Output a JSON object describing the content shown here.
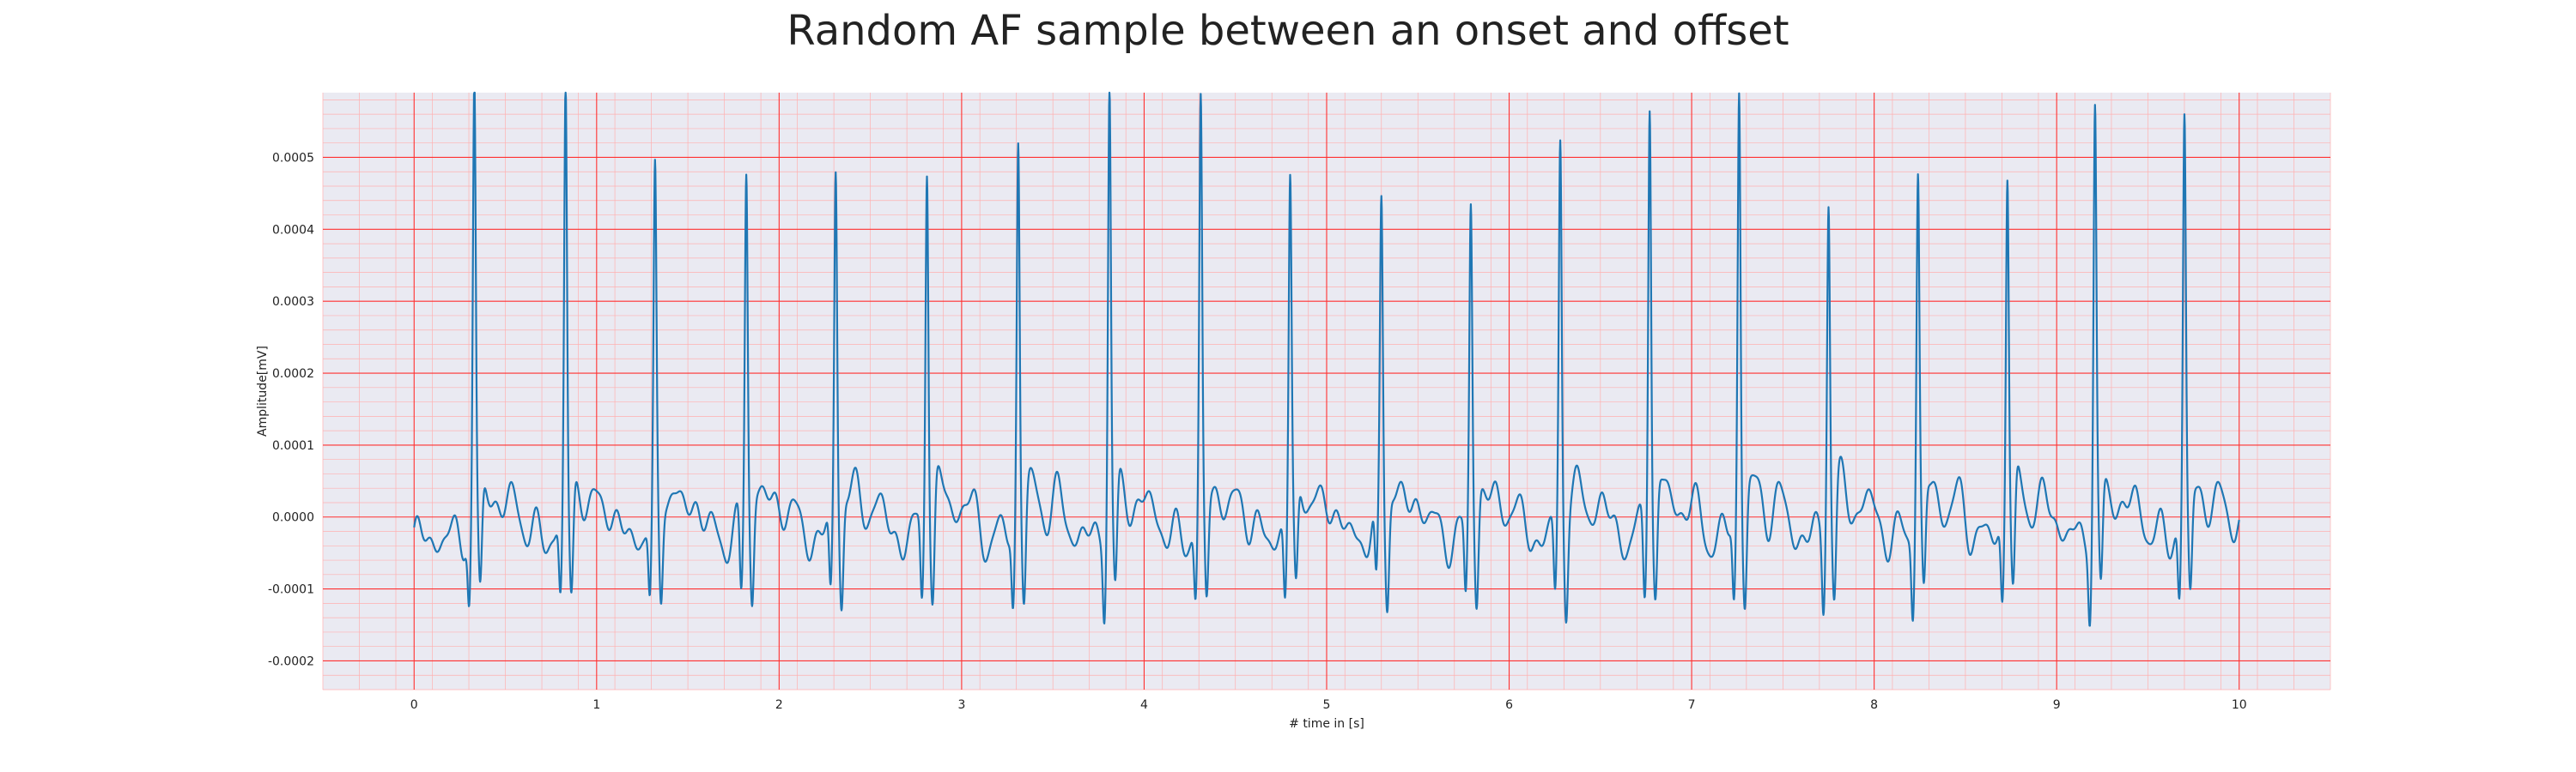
{
  "chart_data": {
    "type": "line",
    "title": "Random AF sample between an onset and offset",
    "xlabel": "# time in [s]",
    "ylabel": "Amplitude[mV]",
    "xlim": [
      -0.5,
      10.5
    ],
    "ylim": [
      -0.00024,
      0.00059
    ],
    "x_ticks": [
      0,
      1,
      2,
      3,
      4,
      5,
      6,
      7,
      8,
      9,
      10
    ],
    "y_ticks": [
      -0.0002,
      -0.0001,
      0.0,
      0.0001,
      0.0002,
      0.0003,
      0.0004,
      0.0005
    ],
    "y_tick_labels": [
      "-0.0002",
      "-0.0001",
      "0.0000",
      "0.0001",
      "0.0002",
      "0.0003",
      "0.0004",
      "0.0005"
    ],
    "grid": true,
    "minor_grid": true,
    "colors": {
      "background": "#eaeaf2",
      "major_grid": "#ff3030",
      "minor_grid": "#ffb0b0",
      "line": "#1f77b4"
    },
    "r_peaks": [
      {
        "t": 0.33,
        "amp": 0.000547
      },
      {
        "t": 0.83,
        "amp": 0.000546
      },
      {
        "t": 1.32,
        "amp": 0.000413
      },
      {
        "t": 1.82,
        "amp": 0.00044
      },
      {
        "t": 2.31,
        "amp": 0.000437
      },
      {
        "t": 2.81,
        "amp": 0.000466
      },
      {
        "t": 3.31,
        "amp": 0.000477
      },
      {
        "t": 3.81,
        "amp": 0.000553
      },
      {
        "t": 4.31,
        "amp": 0.000515
      },
      {
        "t": 4.8,
        "amp": 0.000425
      },
      {
        "t": 5.3,
        "amp": 0.00039
      },
      {
        "t": 5.79,
        "amp": 0.00039
      },
      {
        "t": 6.28,
        "amp": 0.000473
      },
      {
        "t": 6.77,
        "amp": 0.000557
      },
      {
        "t": 7.26,
        "amp": 0.000555
      },
      {
        "t": 7.75,
        "amp": 0.000411
      },
      {
        "t": 8.24,
        "amp": 0.000434
      },
      {
        "t": 8.73,
        "amp": 0.000441
      },
      {
        "t": 9.21,
        "amp": 0.000516
      },
      {
        "t": 9.7,
        "amp": 0.000502
      }
    ],
    "series": [
      {
        "x_start": 0.0,
        "x_end": 10.0,
        "baseline": -3e-05,
        "color": "#1f77b4"
      }
    ]
  }
}
